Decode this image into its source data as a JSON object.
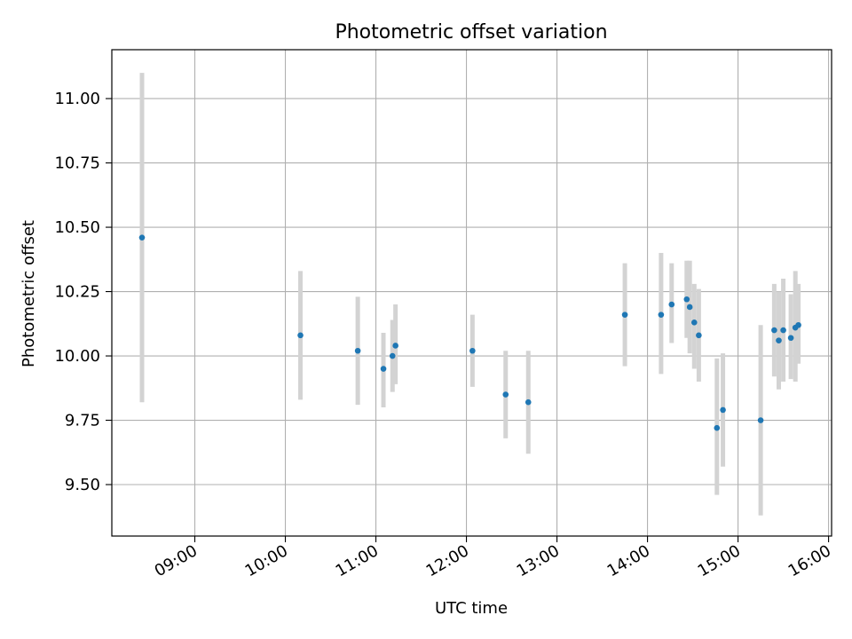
{
  "chart_data": {
    "type": "scatter",
    "title": "Photometric offset variation",
    "xlabel": "UTC time",
    "ylabel": "Photometric offset",
    "x_format": "HH:MM",
    "xlim": [
      "08:05",
      "16:02"
    ],
    "ylim": [
      9.3,
      11.19
    ],
    "xticks": [
      "09:00",
      "10:00",
      "11:00",
      "12:00",
      "13:00",
      "14:00",
      "15:00",
      "16:00"
    ],
    "yticks": [
      "9.50",
      "9.75",
      "10.00",
      "10.25",
      "10.50",
      "10.75",
      "11.00"
    ],
    "grid": true,
    "marker_color": "#1f77b4",
    "errorbar_color": "#d3d3d3",
    "points": [
      {
        "t": "08:25",
        "y": 10.46,
        "ylo": 9.82,
        "yhi": 11.1
      },
      {
        "t": "10:10",
        "y": 10.08,
        "ylo": 9.83,
        "yhi": 10.33
      },
      {
        "t": "10:48",
        "y": 10.02,
        "ylo": 9.81,
        "yhi": 10.23
      },
      {
        "t": "11:05",
        "y": 9.95,
        "ylo": 9.8,
        "yhi": 10.09
      },
      {
        "t": "11:11",
        "y": 10.0,
        "ylo": 9.86,
        "yhi": 10.14
      },
      {
        "t": "11:13",
        "y": 10.04,
        "ylo": 9.89,
        "yhi": 10.2
      },
      {
        "t": "12:04",
        "y": 10.02,
        "ylo": 9.88,
        "yhi": 10.16
      },
      {
        "t": "12:26",
        "y": 9.85,
        "ylo": 9.68,
        "yhi": 10.02
      },
      {
        "t": "12:41",
        "y": 9.82,
        "ylo": 9.62,
        "yhi": 10.02
      },
      {
        "t": "13:45",
        "y": 10.16,
        "ylo": 9.96,
        "yhi": 10.36
      },
      {
        "t": "14:09",
        "y": 10.16,
        "ylo": 9.93,
        "yhi": 10.4
      },
      {
        "t": "14:16",
        "y": 10.2,
        "ylo": 10.05,
        "yhi": 10.36
      },
      {
        "t": "14:26",
        "y": 10.22,
        "ylo": 10.07,
        "yhi": 10.37
      },
      {
        "t": "14:28",
        "y": 10.19,
        "ylo": 10.01,
        "yhi": 10.37
      },
      {
        "t": "14:31",
        "y": 10.13,
        "ylo": 9.95,
        "yhi": 10.28
      },
      {
        "t": "14:34",
        "y": 10.08,
        "ylo": 9.9,
        "yhi": 10.26
      },
      {
        "t": "14:46",
        "y": 9.72,
        "ylo": 9.46,
        "yhi": 9.99
      },
      {
        "t": "14:50",
        "y": 9.79,
        "ylo": 9.57,
        "yhi": 10.01
      },
      {
        "t": "15:15",
        "y": 9.75,
        "ylo": 9.38,
        "yhi": 10.12
      },
      {
        "t": "15:24",
        "y": 10.1,
        "ylo": 9.92,
        "yhi": 10.28
      },
      {
        "t": "15:27",
        "y": 10.06,
        "ylo": 9.87,
        "yhi": 10.25
      },
      {
        "t": "15:30",
        "y": 10.1,
        "ylo": 9.9,
        "yhi": 10.3
      },
      {
        "t": "15:35",
        "y": 10.07,
        "ylo": 9.91,
        "yhi": 10.24
      },
      {
        "t": "15:38",
        "y": 10.11,
        "ylo": 9.9,
        "yhi": 10.33
      },
      {
        "t": "15:40",
        "y": 10.12,
        "ylo": 9.97,
        "yhi": 10.28
      }
    ]
  }
}
